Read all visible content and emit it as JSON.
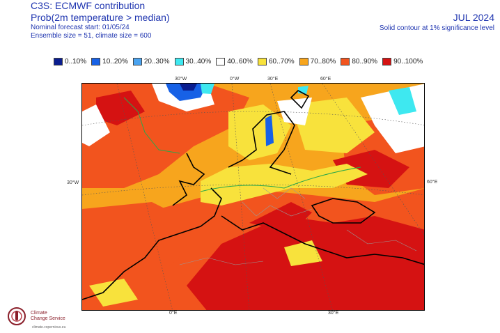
{
  "header": {
    "title": "C3S: ECMWF contribution",
    "subtitle": "Prob(2m temperature > median)",
    "forecast_start": "Nominal forecast start: 01/05/24",
    "ensemble": "Ensemble size = 51, climate size = 600",
    "month": "JUL 2024",
    "significance": "Solid contour at 1% significance level"
  },
  "legend": [
    {
      "label": "0..10%",
      "color": "#0a1d8f"
    },
    {
      "label": "10..20%",
      "color": "#1761e6"
    },
    {
      "label": "20..30%",
      "color": "#4aa3f0"
    },
    {
      "label": "30..40%",
      "color": "#3ee8f0"
    },
    {
      "label": "40..60%",
      "color": "#ffffff"
    },
    {
      "label": "60..70%",
      "color": "#f8e23c"
    },
    {
      "label": "70..80%",
      "color": "#f7a51d"
    },
    {
      "label": "80..90%",
      "color": "#f2541e"
    },
    {
      "label": "90..100%",
      "color": "#d51212"
    }
  ],
  "axis_labels": {
    "top_30w": "30°W",
    "top_0w": "0°W",
    "top_30e": "30°E",
    "top_60e": "60°E",
    "left_30w": "30°W",
    "right_60e": "60°E",
    "bottom_0e": "0°E",
    "bottom_30e": "30°E"
  },
  "logo": {
    "line1": "Climate",
    "line2": "Change Service",
    "url": "climate.copernicus.eu"
  }
}
